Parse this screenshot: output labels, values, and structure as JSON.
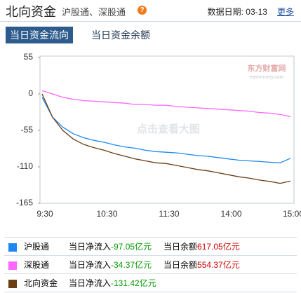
{
  "header": {
    "title": "北向资金",
    "subtitle": "沪股通、深股通",
    "help": "?",
    "date": "数据日期: 03-13",
    "more": "更多"
  },
  "tabs": [
    "当日资金流向",
    "当日资金余额"
  ],
  "watermark": {
    "brand": "东方财富网",
    "site": "eastmoney.com",
    "hint": "点击查看大图"
  },
  "chart_data": {
    "type": "line",
    "categories": [
      "9:30",
      null,
      null,
      null,
      null,
      null,
      "10:30",
      null,
      null,
      null,
      null,
      null,
      "11:30",
      null,
      null,
      null,
      null,
      null,
      "14:00",
      null,
      null,
      null,
      null,
      null,
      "15:00"
    ],
    "ylim": [
      -165,
      55
    ],
    "yticks": [
      55,
      0,
      -55,
      -110,
      -165
    ],
    "grid": false,
    "series": [
      {
        "name": "沪股通",
        "color": "#1e88f0",
        "values": [
          -5,
          -35,
          -50,
          -60,
          -66,
          -70,
          -73,
          -77,
          -80,
          -82,
          -85,
          -87,
          -88,
          -89,
          -91,
          -93,
          -94,
          -96,
          -98,
          -100,
          -101,
          -102,
          -103,
          -104,
          -97.05
        ]
      },
      {
        "name": "深股通",
        "color": "#ff66ff",
        "values": [
          5,
          0,
          -5,
          -8,
          -10,
          -11,
          -12,
          -13,
          -14,
          -16,
          -16,
          -17,
          -17,
          -19,
          -20,
          -21,
          -22,
          -23,
          -24,
          -25,
          -26,
          -28,
          -29,
          -31,
          -34.37
        ]
      },
      {
        "name": "北向资金",
        "color": "#6b3d12",
        "values": [
          0,
          -35,
          -55,
          -68,
          -76,
          -81,
          -85,
          -90,
          -94,
          -98,
          -101,
          -104,
          -105,
          -108,
          -111,
          -114,
          -116,
          -119,
          -122,
          -125,
          -127,
          -130,
          -132,
          -135,
          -131.42
        ]
      }
    ]
  },
  "summary": {
    "rows": [
      {
        "inflow_label": "当日净流入",
        "inflow": "-97.05亿元",
        "balance_label": "当日余额",
        "balance": "617.05亿元"
      },
      {
        "inflow_label": "当日净流入",
        "inflow": "-34.37亿元",
        "balance_label": "当日余额",
        "balance": "554.37亿元"
      },
      {
        "inflow_label": "当日净流入",
        "inflow": "-131.42亿元"
      }
    ]
  }
}
